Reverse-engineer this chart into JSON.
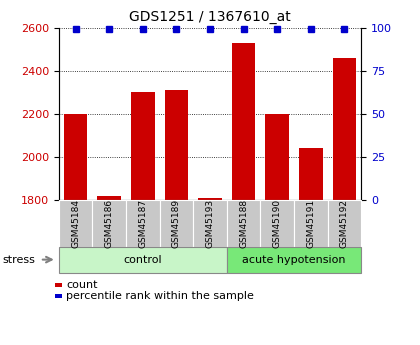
{
  "title": "GDS1251 / 1367610_at",
  "samples": [
    "GSM45184",
    "GSM45186",
    "GSM45187",
    "GSM45189",
    "GSM45193",
    "GSM45188",
    "GSM45190",
    "GSM45191",
    "GSM45192"
  ],
  "counts": [
    2200,
    1820,
    2300,
    2310,
    1810,
    2530,
    2200,
    2040,
    2460
  ],
  "percentile_ranks": [
    99,
    99,
    99,
    99,
    99,
    99,
    99,
    99,
    99
  ],
  "ylim_left": [
    1800,
    2600
  ],
  "ylim_right": [
    0,
    100
  ],
  "yticks_left": [
    1800,
    2000,
    2200,
    2400,
    2600
  ],
  "yticks_right": [
    0,
    25,
    50,
    75,
    100
  ],
  "groups": [
    {
      "label": "control",
      "indices": [
        0,
        1,
        2,
        3,
        4
      ],
      "color": "#c8f5c8"
    },
    {
      "label": "acute hypotension",
      "indices": [
        5,
        6,
        7,
        8
      ],
      "color": "#78e878"
    }
  ],
  "bar_color": "#cc0000",
  "percentile_color": "#0000cc",
  "bar_bottom": 1800,
  "background_color": "#ffffff",
  "label_color_left": "#cc0000",
  "label_color_right": "#0000cc",
  "legend_count": "count",
  "legend_percentile": "percentile rank within the sample",
  "tick_bg_color": "#c8c8c8",
  "bar_width": 0.7,
  "n_samples": 9
}
